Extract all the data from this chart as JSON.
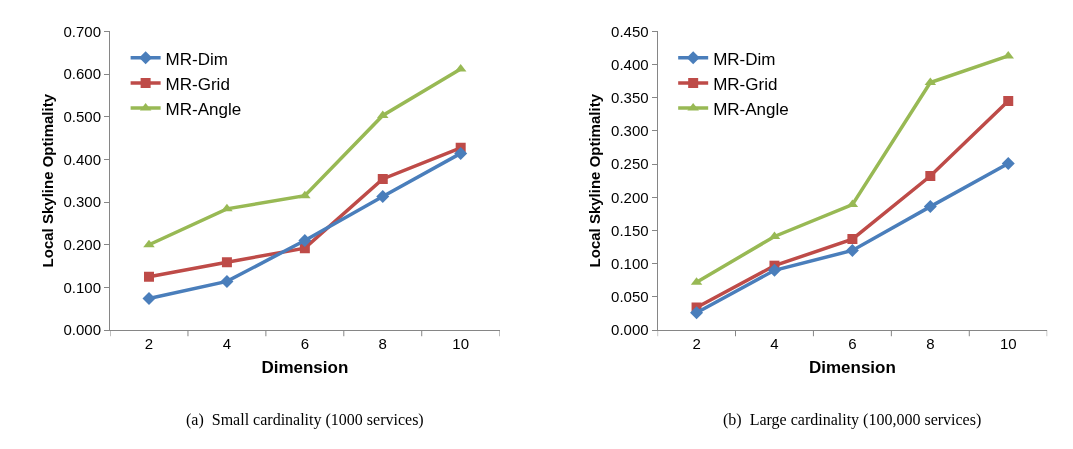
{
  "chart_data": [
    {
      "type": "line",
      "categories": [
        "2",
        "4",
        "6",
        "8",
        "10"
      ],
      "xlabel": "Dimension",
      "ylabel": "Local Skyline Optimality",
      "ylim": [
        0,
        0.7
      ],
      "yticks": [
        {
          "value": 0,
          "label": "0.000"
        },
        {
          "value": 0.1,
          "label": "0.100"
        },
        {
          "value": 0.2,
          "label": "0.200"
        },
        {
          "value": 0.3,
          "label": "0.300"
        },
        {
          "value": 0.4,
          "label": "0.400"
        },
        {
          "value": 0.5,
          "label": "0.500"
        },
        {
          "value": 0.6,
          "label": "0.600"
        },
        {
          "value": 0.7,
          "label": "0.700"
        }
      ],
      "grid": false,
      "legend": "top left",
      "line_style": "solid",
      "annotations": [
        "(a)  Small cardinality (1000 services)"
      ],
      "series": [
        {
          "name": "MR-Dim",
          "color": "#4a7ebb",
          "marker": "diamond",
          "values": [
            0.074,
            0.114,
            0.21,
            0.313,
            0.414
          ]
        },
        {
          "name": "MR-Grid",
          "color": "#be4b48",
          "marker": "square",
          "values": [
            0.125,
            0.159,
            0.192,
            0.354,
            0.427
          ]
        },
        {
          "name": "MR-Angle",
          "color": "#98b954",
          "marker": "triangle",
          "values": [
            0.2,
            0.284,
            0.315,
            0.503,
            0.612
          ]
        }
      ]
    },
    {
      "type": "line",
      "categories": [
        "2",
        "4",
        "6",
        "8",
        "10"
      ],
      "xlabel": "Dimension",
      "ylabel": "Local Skyline Optimality",
      "ylim": [
        0,
        0.45
      ],
      "yticks": [
        {
          "value": 0,
          "label": "0.000"
        },
        {
          "value": 0.05,
          "label": "0.050"
        },
        {
          "value": 0.1,
          "label": "0.100"
        },
        {
          "value": 0.15,
          "label": "0.150"
        },
        {
          "value": 0.2,
          "label": "0.200"
        },
        {
          "value": 0.25,
          "label": "0.250"
        },
        {
          "value": 0.3,
          "label": "0.300"
        },
        {
          "value": 0.35,
          "label": "0.350"
        },
        {
          "value": 0.4,
          "label": "0.400"
        },
        {
          "value": 0.45,
          "label": "0.450"
        }
      ],
      "grid": false,
      "legend": "top left",
      "line_style": "solid",
      "annotations": [
        "(b)  Large cardinality (100,000 services)"
      ],
      "series": [
        {
          "name": "MR-Dim",
          "color": "#4a7ebb",
          "marker": "diamond",
          "values": [
            0.026,
            0.09,
            0.12,
            0.186,
            0.251
          ]
        },
        {
          "name": "MR-Grid",
          "color": "#be4b48",
          "marker": "square",
          "values": [
            0.034,
            0.097,
            0.137,
            0.232,
            0.345
          ]
        },
        {
          "name": "MR-Angle",
          "color": "#98b954",
          "marker": "triangle",
          "values": [
            0.072,
            0.141,
            0.189,
            0.373,
            0.413
          ]
        }
      ]
    }
  ]
}
